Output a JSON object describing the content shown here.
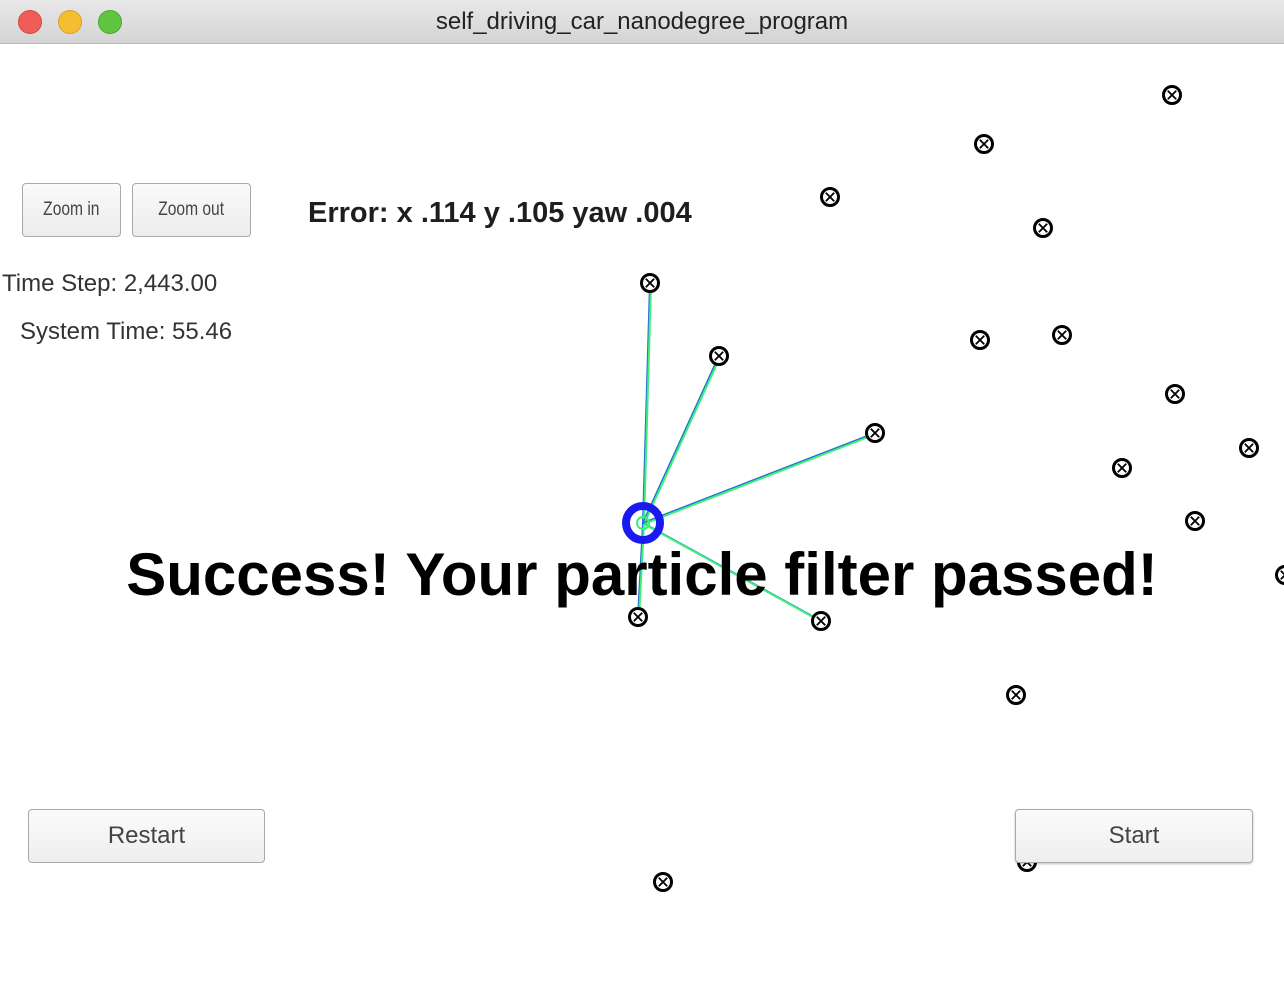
{
  "window": {
    "title": "self_driving_car_nanodegree_program"
  },
  "controls": {
    "zoom_in_label": "Zoom in",
    "zoom_out_label": "Zoom out",
    "restart_label": "Restart",
    "start_label": "Start"
  },
  "readouts": {
    "error": "Error: x .114 y .105 yaw .004",
    "time_step": "Time Step: 2,443.00",
    "system_time": "System Time: 55.46"
  },
  "status": {
    "message": "Success! Your particle filter passed!"
  },
  "colors": {
    "vehicle": "#1a1aee",
    "observation_line": "#2a6fd6",
    "particle_line": "#3cf07a",
    "landmark": "#000000"
  },
  "icons": {
    "landmark": "landmark-marker-icon",
    "vehicle": "vehicle-marker-icon"
  }
}
